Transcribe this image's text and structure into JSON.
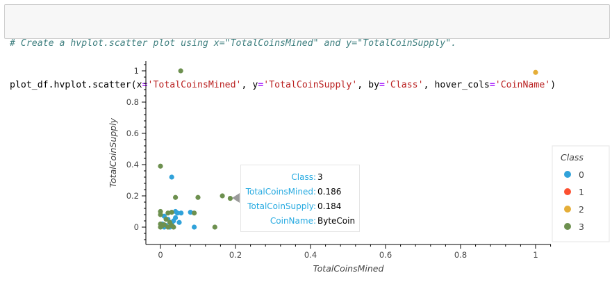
{
  "code": {
    "comment": "# Create a hvplot.scatter plot using x=\"TotalCoinsMined\" and y=\"TotalCoinSupply\".",
    "line2_parts": {
      "p1": "plot_df.hvplot.scatter(x",
      "eq": "=",
      "s1": "'TotalCoinsMined'",
      "p2": ", y",
      "s2": "'TotalCoinSupply'",
      "p3": ", by",
      "s3": "'Class'",
      "p4": ", hover_cols",
      "s4": "'CoinName'",
      "p5": ")"
    }
  },
  "chart_data": {
    "type": "scatter",
    "xlabel": "TotalCoinsMined",
    "ylabel": "TotalCoinSupply",
    "xlim": [
      -0.04,
      1.04
    ],
    "ylim": [
      -0.1,
      1.08
    ],
    "xticks": [
      0,
      0.2,
      0.4,
      0.6,
      0.8,
      1
    ],
    "xtick_labels": [
      "0",
      "0.2",
      "0.4",
      "0.6",
      "0.8",
      "1"
    ],
    "yticks": [
      0,
      0.2,
      0.4,
      0.6,
      0.8,
      1
    ],
    "ytick_labels": [
      "0",
      "0.2",
      "0.4",
      "0.6",
      "0.8",
      "1"
    ],
    "legend_title": "Class",
    "legend_position": "right",
    "series": [
      {
        "name": "0",
        "color": "#30a2da",
        "points": [
          [
            0.03,
            0.32
          ],
          [
            0.04,
            0.1
          ],
          [
            0.045,
            0.09
          ],
          [
            0.055,
            0.09
          ],
          [
            0.08,
            0.095
          ],
          [
            0.05,
            0.03
          ],
          [
            0.035,
            0.04
          ],
          [
            0.02,
            0.05
          ],
          [
            0.01,
            0.07
          ],
          [
            0.005,
            0.02
          ],
          [
            0.015,
            0.01
          ],
          [
            0.025,
            0.0
          ],
          [
            0.09,
            0.0
          ],
          [
            0.04,
            0.06
          ],
          [
            0.03,
            0.02
          ],
          [
            0.01,
            0.0
          ]
        ]
      },
      {
        "name": "1",
        "color": "#fc4f30",
        "points": []
      },
      {
        "name": "2",
        "color": "#e5ae38",
        "points": [
          [
            1.0,
            0.99
          ]
        ]
      },
      {
        "name": "3",
        "color": "#6d904f",
        "points": [
          [
            0.054,
            1.0
          ],
          [
            0.0,
            0.39
          ],
          [
            0.04,
            0.19
          ],
          [
            0.1,
            0.19
          ],
          [
            0.165,
            0.2
          ],
          [
            0.186,
            0.184
          ],
          [
            0.09,
            0.09
          ],
          [
            0.0,
            0.1
          ],
          [
            0.0,
            0.08
          ],
          [
            0.02,
            0.09
          ],
          [
            0.03,
            0.095
          ],
          [
            0.145,
            0.0
          ],
          [
            0.0,
            0.02
          ],
          [
            0.005,
            0.01
          ],
          [
            0.01,
            0.015
          ],
          [
            0.02,
            0.0
          ],
          [
            0.0,
            0.0
          ],
          [
            0.035,
            0.0
          ],
          [
            0.025,
            0.03
          ],
          [
            0.015,
            0.05
          ],
          [
            0.03,
            0.01
          ]
        ]
      }
    ]
  },
  "tooltip": {
    "rows": [
      {
        "key": "Class:",
        "value": "3"
      },
      {
        "key": "TotalCoinsMined:",
        "value": "0.186"
      },
      {
        "key": "TotalCoinSupply:",
        "value": "0.184"
      },
      {
        "key": "CoinName:",
        "value": "ByteCoin"
      }
    ]
  }
}
